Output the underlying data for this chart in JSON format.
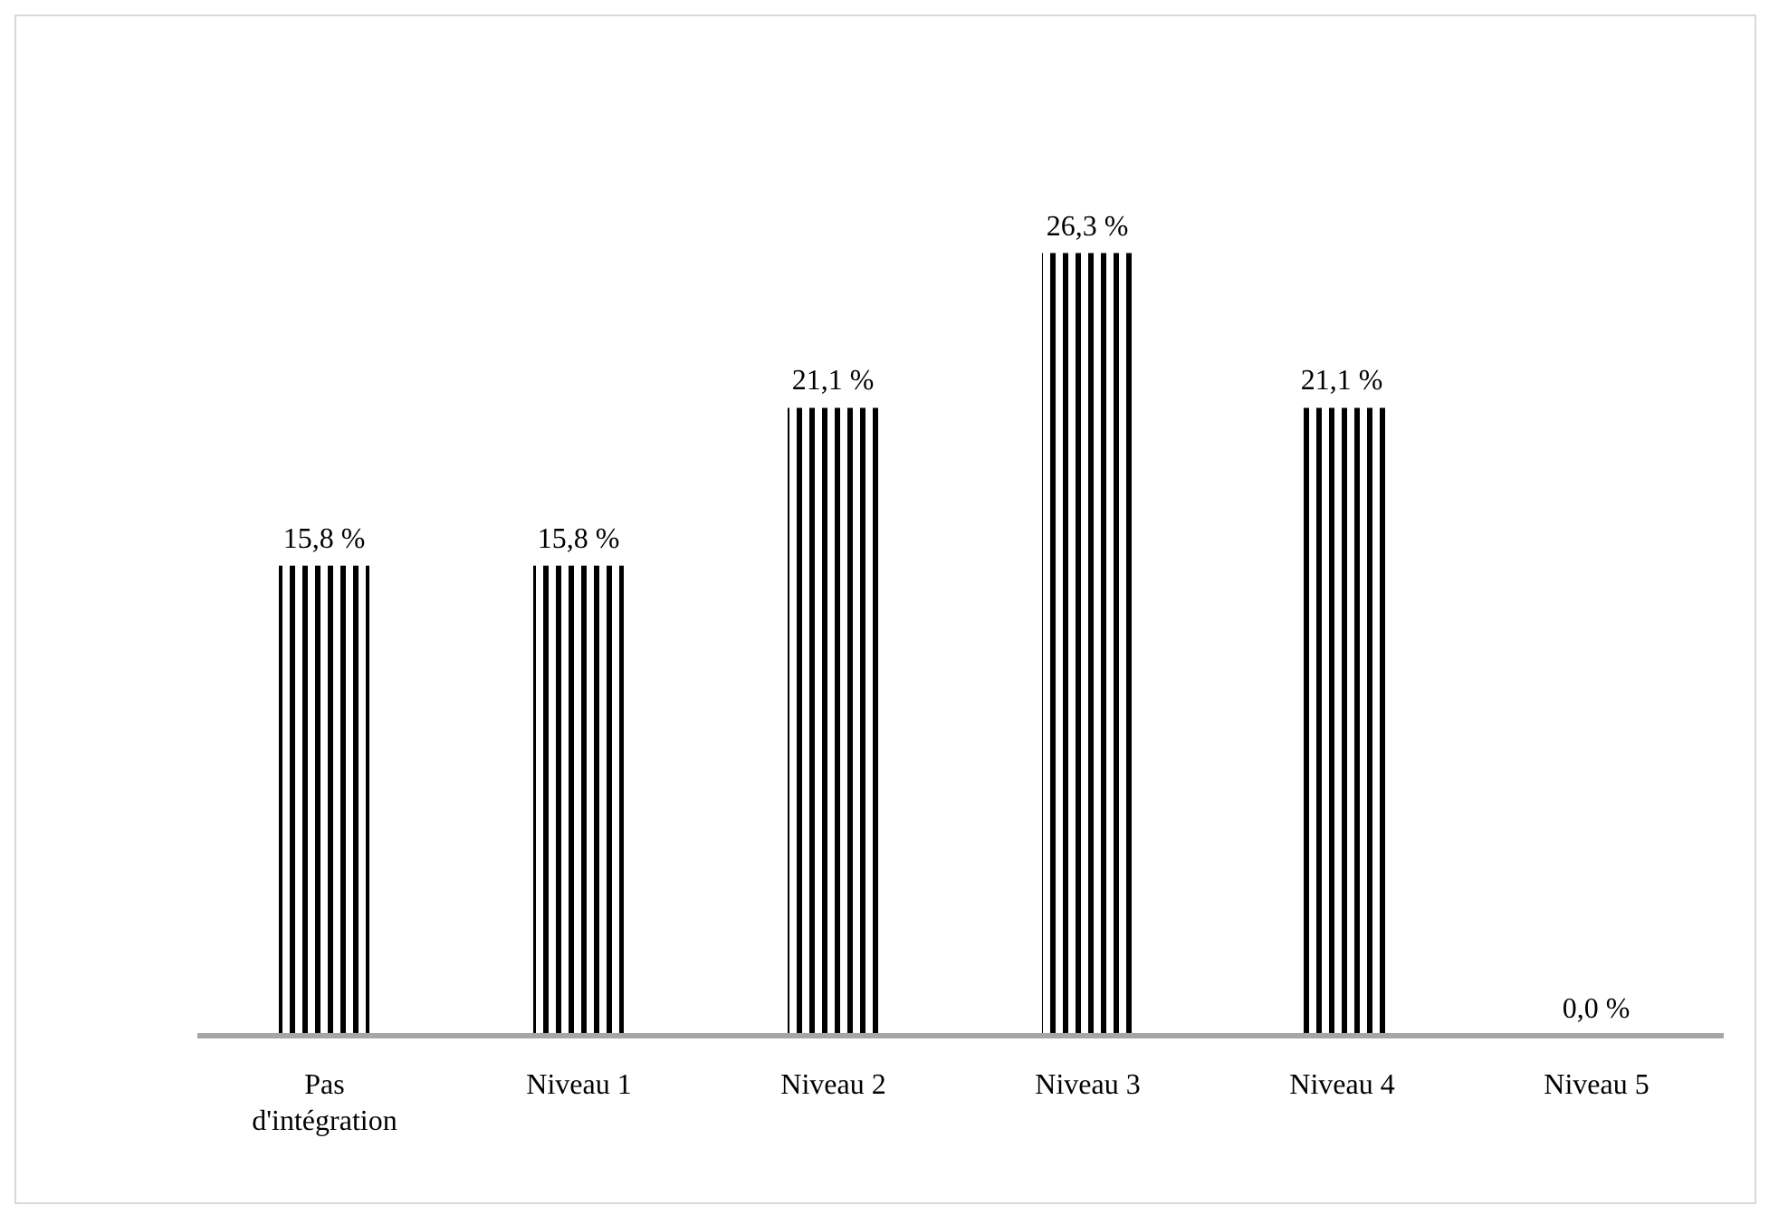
{
  "chart_data": {
    "type": "bar",
    "categories": [
      "Pas d'intégration",
      "Niveau 1",
      "Niveau 2",
      "Niveau 3",
      "Niveau 4",
      "Niveau 5"
    ],
    "values": [
      15.8,
      15.8,
      21.1,
      26.3,
      21.1,
      0.0
    ],
    "value_labels": [
      "15,8 %",
      "15,8 %",
      "21,1 %",
      "26,3 %",
      "21,1 %",
      "0,0 %"
    ],
    "color": "#000000",
    "grid": false,
    "legend": false
  }
}
